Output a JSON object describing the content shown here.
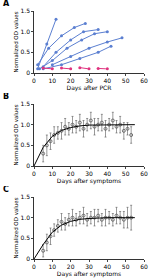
{
  "chart_data": [
    {
      "type": "line",
      "title": "A",
      "x_label": "Days after PCR",
      "y_label": "Normalized OD values",
      "xlim": [
        0,
        60
      ],
      "xticks": [
        0,
        10,
        20,
        30,
        40,
        50,
        60
      ],
      "ylim": [
        0,
        1.5
      ],
      "yticks": [
        0,
        {
          "value": 0.5,
          "label": "0.5"
        },
        {
          "value": 1,
          "label": "1.0"
        },
        {
          "value": 1.5,
          "label": "1.5"
        }
      ],
      "grid": false,
      "series": [
        {
          "color": "#5b7fd1",
          "marker": "circle",
          "line_style": "solid",
          "x": [
            2,
            8,
            15,
            22,
            28
          ],
          "values": [
            0.2,
            0.6,
            0.9,
            1.1,
            1.2
          ]
        },
        {
          "color": "#5b7fd1",
          "marker": "circle",
          "line_style": "solid",
          "x": [
            5,
            12,
            20,
            27,
            35
          ],
          "values": [
            0.15,
            0.5,
            0.8,
            1.0,
            1.05
          ]
        },
        {
          "color": "#5b7fd1",
          "marker": "circle",
          "line_style": "solid",
          "x": [
            3,
            10,
            18,
            26,
            33,
            40
          ],
          "values": [
            0.1,
            0.3,
            0.6,
            0.8,
            0.95,
            1.0
          ]
        },
        {
          "color": "#5b7fd1",
          "marker": "circle",
          "line_style": "solid",
          "x": [
            10,
            20,
            30,
            40,
            48
          ],
          "values": [
            0.2,
            0.4,
            0.6,
            0.75,
            0.85
          ]
        },
        {
          "color": "#5b7fd1",
          "marker": "circle",
          "line_style": "solid",
          "x": [
            5,
            15,
            25,
            35,
            42
          ],
          "values": [
            0.1,
            0.2,
            0.35,
            0.5,
            0.65
          ]
        },
        {
          "color": "#5b7fd1",
          "marker": "circle",
          "line_style": "solid",
          "x": [
            2,
            7,
            12
          ],
          "values": [
            0.1,
            0.7,
            1.3
          ]
        },
        {
          "color": "#e0337f",
          "marker": "circle",
          "line_style": "dashed",
          "x": [
            5,
            10,
            15,
            20,
            25,
            30,
            35,
            40
          ],
          "values": [
            0.12,
            0.1,
            0.12,
            0.1,
            0.13,
            0.1,
            0.11,
            0.1
          ]
        }
      ]
    },
    {
      "type": "scatter",
      "title": "B",
      "x_label": "Days after symptoms",
      "y_label": "Normalized OD values",
      "xlim": [
        0,
        60
      ],
      "xticks": [
        0,
        10,
        20,
        30,
        40,
        50,
        60
      ],
      "ylim": [
        0,
        1.5
      ],
      "yticks": [
        0,
        {
          "value": 0.5,
          "label": "0.5"
        },
        {
          "value": 1,
          "label": "1.0"
        },
        {
          "value": 1.5,
          "label": "1.5"
        }
      ],
      "grid": false,
      "series": [
        {
          "type": "scatter",
          "color": "#555555",
          "marker": "open circle",
          "x": [
            5,
            7,
            9,
            11,
            13,
            15,
            17,
            19,
            21,
            23,
            25,
            27,
            29,
            31,
            33,
            35,
            37,
            39,
            41,
            43,
            45,
            47,
            49,
            51,
            53
          ],
          "values": [
            0.3,
            0.5,
            0.6,
            0.75,
            0.8,
            0.85,
            0.95,
            0.9,
            1.0,
            0.95,
            1.05,
            0.9,
            1.0,
            1.1,
            0.95,
            1.0,
            1.05,
            0.9,
            1.0,
            1.1,
            0.95,
            1.0,
            0.85,
            0.9,
            0.75
          ],
          "errors": [
            0.2,
            0.25,
            0.2,
            0.2,
            0.15,
            0.2,
            0.2,
            0.15,
            0.2,
            0.15,
            0.2,
            0.2,
            0.15,
            0.2,
            0.2,
            0.15,
            0.2,
            0.2,
            0.15,
            0.2,
            0.15,
            0.2,
            0.2,
            0.15,
            0.2
          ]
        },
        {
          "type": "line",
          "color": "#000000",
          "line_style": "solid",
          "x": [
            0,
            5,
            10,
            15,
            20,
            25,
            30,
            40,
            50,
            55
          ],
          "values": [
            0,
            0.45,
            0.72,
            0.86,
            0.93,
            0.97,
            0.99,
            1.0,
            1.0,
            1.0
          ]
        }
      ]
    },
    {
      "type": "scatter",
      "title": "C",
      "x_label": "Days after symptoms",
      "y_label": "Normalized OD values",
      "xlim": [
        0,
        60
      ],
      "xticks": [
        0,
        10,
        20,
        30,
        40,
        50,
        60
      ],
      "ylim": [
        0,
        1.5
      ],
      "yticks": [
        0,
        {
          "value": 0.5,
          "label": "0.5"
        },
        {
          "value": 1,
          "label": "1.0"
        },
        {
          "value": 1.5,
          "label": "1.5"
        }
      ],
      "grid": false,
      "series": [
        {
          "type": "scatter",
          "color": "#555555",
          "marker": "open circle",
          "x": [
            5,
            7,
            9,
            11,
            13,
            15,
            17,
            19,
            21,
            23,
            25,
            27,
            29,
            31,
            33,
            35,
            37,
            39,
            41,
            43,
            45,
            47,
            49,
            51,
            53
          ],
          "values": [
            0.2,
            0.4,
            0.55,
            0.7,
            0.8,
            0.9,
            0.85,
            0.95,
            1.0,
            0.95,
            1.0,
            1.05,
            0.95,
            1.0,
            1.0,
            1.05,
            0.95,
            1.0,
            1.0,
            0.95,
            1.05,
            1.0,
            0.95,
            1.0,
            1.0
          ],
          "errors": [
            0.15,
            0.2,
            0.2,
            0.15,
            0.15,
            0.2,
            0.15,
            0.15,
            0.2,
            0.15,
            0.15,
            0.2,
            0.15,
            0.15,
            0.2,
            0.15,
            0.15,
            0.2,
            0.15,
            0.15,
            0.2,
            0.15,
            0.2,
            0.25,
            0.3
          ]
        },
        {
          "type": "line",
          "color": "#000000",
          "line_style": "solid",
          "x": [
            0,
            5,
            10,
            15,
            20,
            25,
            30,
            40,
            50,
            55
          ],
          "values": [
            0,
            0.35,
            0.65,
            0.82,
            0.91,
            0.96,
            0.98,
            1.0,
            1.0,
            1.0
          ]
        }
      ]
    }
  ]
}
